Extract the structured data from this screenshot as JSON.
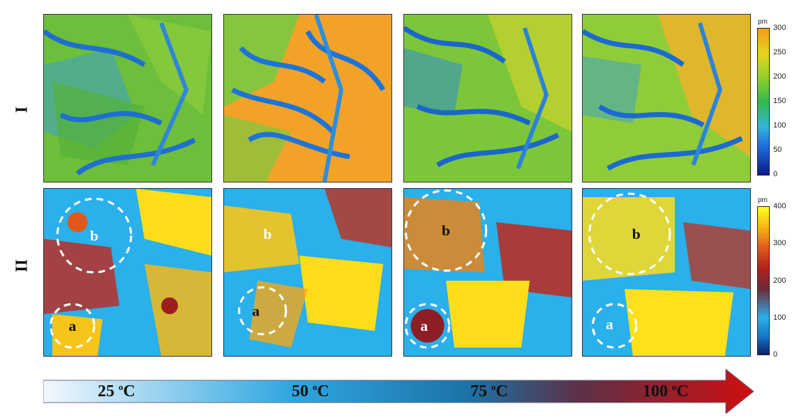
{
  "rows": {
    "row1": "I",
    "row2": "II"
  },
  "colorbar_top": {
    "unit": "pm",
    "ticks": [
      "300",
      "250",
      "200",
      "150",
      "100",
      "50",
      "0"
    ]
  },
  "colorbar_bottom": {
    "unit": "pm",
    "ticks": [
      "400",
      "300",
      "200",
      "100",
      "0"
    ]
  },
  "panel_labels": {
    "a": "a",
    "b": "b"
  },
  "temperatures": [
    {
      "value": "25 ",
      "unit": "o",
      "suffix": "C"
    },
    {
      "value": "50 ",
      "unit": "o",
      "suffix": "C"
    },
    {
      "value": "75 ",
      "unit": "o",
      "suffix": "C"
    },
    {
      "value": "100 ",
      "unit": "o",
      "suffix": "C"
    }
  ]
}
